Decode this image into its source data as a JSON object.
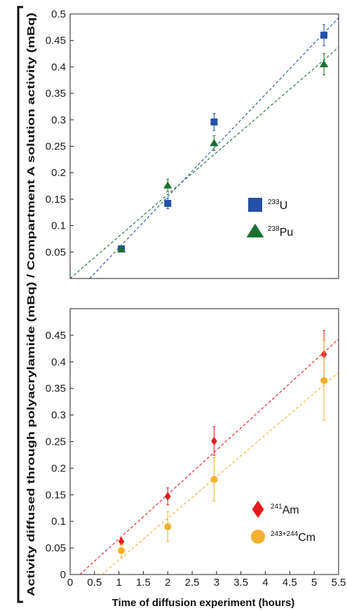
{
  "ylabel": "Activity diffused through polyacrylamide (mBq) / Compartment A solution activity (mBq)",
  "xlabel": "Time of diffusion experiment (hours)",
  "chart_data": [
    {
      "type": "scatter",
      "panel": "top",
      "xlim": [
        0,
        5.5
      ],
      "ylim": [
        0,
        0.5
      ],
      "yticks": [
        "0.05",
        "0.1",
        "0.15",
        "0.2",
        "0.25",
        "0.3",
        "0.35",
        "0.4",
        "0.45",
        "0.5"
      ],
      "ytick_values": [
        0.05,
        0.1,
        0.15,
        0.2,
        0.25,
        0.3,
        0.35,
        0.4,
        0.45,
        0.5
      ],
      "legend_position": "center-right",
      "series": [
        {
          "name": "233U",
          "sup": "233",
          "label": "U",
          "marker": "square",
          "color": "#2350a8",
          "x": [
            1.05,
            2.0,
            2.95,
            5.2
          ],
          "y": [
            0.056,
            0.142,
            0.296,
            0.46
          ],
          "err": [
            0.005,
            0.01,
            0.016,
            0.02
          ],
          "fit": {
            "x": [
              0.4,
              5.5
            ],
            "y": [
              0.0,
              0.493
            ]
          }
        },
        {
          "name": "238Pu",
          "sup": "238",
          "label": "Pu",
          "marker": "triangle",
          "color": "#1a7030",
          "x": [
            1.05,
            2.0,
            2.95,
            5.2
          ],
          "y": [
            0.055,
            0.176,
            0.256,
            0.405
          ],
          "err": [
            0.004,
            0.012,
            0.014,
            0.02
          ],
          "fit": {
            "x": [
              0.0,
              5.5
            ],
            "y": [
              0.0,
              0.437
            ]
          }
        }
      ]
    },
    {
      "type": "scatter",
      "panel": "bottom",
      "xlim": [
        0,
        5.5
      ],
      "ylim": [
        0,
        0.5
      ],
      "xticks": [
        "0",
        "0.5",
        "1",
        "1.5",
        "2",
        "2.5",
        "3",
        "3.5",
        "4",
        "4.5",
        "5",
        "5.5"
      ],
      "xtick_values": [
        0,
        0.5,
        1,
        1.5,
        2,
        2.5,
        3,
        3.5,
        4,
        4.5,
        5,
        5.5
      ],
      "yticks": [
        "0",
        "0.05",
        "0.1",
        "0.15",
        "0.2",
        "0.25",
        "0.3",
        "0.35",
        "0.4",
        "0.45"
      ],
      "ytick_values": [
        0,
        0.05,
        0.1,
        0.15,
        0.2,
        0.25,
        0.3,
        0.35,
        0.4,
        0.45
      ],
      "legend_position": "bottom-right",
      "series": [
        {
          "name": "241Am",
          "sup": "241",
          "label": "Am",
          "marker": "diamond",
          "color": "#e8191c",
          "x": [
            1.05,
            2.0,
            2.95,
            5.2
          ],
          "y": [
            0.062,
            0.147,
            0.251,
            0.414
          ],
          "err": [
            0.006,
            0.016,
            0.027,
            0.045
          ],
          "fit": {
            "x": [
              0.2,
              5.5
            ],
            "y": [
              0.0,
              0.443
            ]
          }
        },
        {
          "name": "243+244Cm",
          "sup": "243+244",
          "label": "Cm",
          "marker": "circle",
          "color": "#f5b030",
          "x": [
            1.05,
            2.0,
            2.95,
            5.2
          ],
          "y": [
            0.045,
            0.09,
            0.179,
            0.365
          ],
          "err": [
            0.012,
            0.028,
            0.041,
            0.075
          ],
          "fit": {
            "x": [
              0.65,
              5.5
            ],
            "y": [
              0.0,
              0.38
            ]
          }
        }
      ]
    }
  ]
}
